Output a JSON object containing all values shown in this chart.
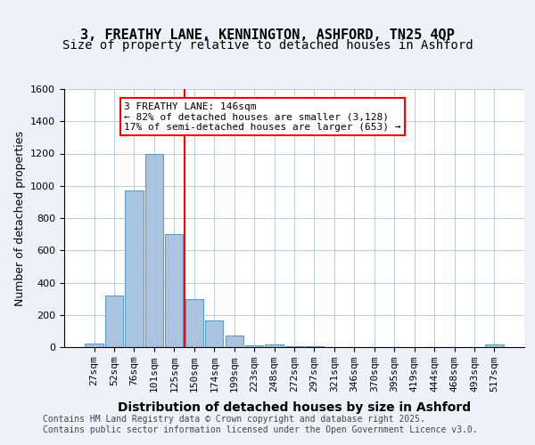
{
  "title_line1": "3, FREATHY LANE, KENNINGTON, ASHFORD, TN25 4QP",
  "title_line2": "Size of property relative to detached houses in Ashford",
  "xlabel": "Distribution of detached houses by size in Ashford",
  "ylabel": "Number of detached properties",
  "categories": [
    "27sqm",
    "52sqm",
    "76sqm",
    "101sqm",
    "125sqm",
    "150sqm",
    "174sqm",
    "199sqm",
    "223sqm",
    "248sqm",
    "272sqm",
    "297sqm",
    "321sqm",
    "346sqm",
    "370sqm",
    "395sqm",
    "419sqm",
    "444sqm",
    "468sqm",
    "493sqm",
    "517sqm"
  ],
  "values": [
    20,
    320,
    970,
    1200,
    700,
    300,
    165,
    70,
    12,
    18,
    5,
    5,
    2,
    2,
    1,
    1,
    0,
    0,
    0,
    0,
    15
  ],
  "bar_color": "#aac4e0",
  "bar_edge_color": "#5a9ec9",
  "vline_x": 5,
  "vline_color": "red",
  "annotation_text": "3 FREATHY LANE: 146sqm\n← 82% of detached houses are smaller (3,128)\n17% of semi-detached houses are larger (653) →",
  "annotation_box_color": "white",
  "annotation_box_edge_color": "red",
  "ylim": [
    0,
    1600
  ],
  "yticks": [
    0,
    200,
    400,
    600,
    800,
    1000,
    1200,
    1400,
    1600
  ],
  "bg_color": "#eef2f8",
  "plot_bg_color": "white",
  "footer_text": "Contains HM Land Registry data © Crown copyright and database right 2025.\nContains public sector information licensed under the Open Government Licence v3.0.",
  "title_fontsize": 11,
  "subtitle_fontsize": 10,
  "axis_label_fontsize": 9,
  "tick_fontsize": 8,
  "annotation_fontsize": 8,
  "footer_fontsize": 7
}
